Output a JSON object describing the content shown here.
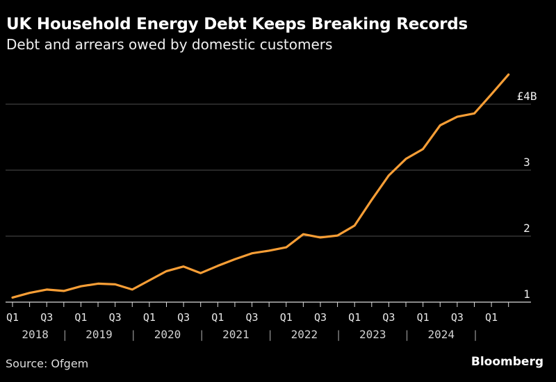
{
  "header": {
    "title": "UK Household Energy Debt Keeps Breaking Records",
    "subtitle": "Debt and arrears owed by domestic customers"
  },
  "footer": {
    "source": "Source: Ofgem",
    "brand": "Bloomberg"
  },
  "chart_data": {
    "type": "line",
    "title": "UK Household Energy Debt Keeps Breaking Records",
    "subtitle": "Debt and arrears owed by domestic customers",
    "source": "Source: Ofgem",
    "xlabel": "",
    "ylabel": "",
    "yunit": "£B",
    "x": [
      "Q1 2018",
      "Q2 2018",
      "Q3 2018",
      "Q4 2018",
      "Q1 2019",
      "Q2 2019",
      "Q3 2019",
      "Q4 2019",
      "Q1 2020",
      "Q2 2020",
      "Q3 2020",
      "Q4 2020",
      "Q1 2021",
      "Q2 2021",
      "Q3 2021",
      "Q4 2021",
      "Q1 2022",
      "Q2 2022",
      "Q3 2022",
      "Q4 2022",
      "Q1 2023",
      "Q2 2023",
      "Q3 2023",
      "Q4 2023",
      "Q1 2024",
      "Q2 2024",
      "Q3 2024",
      "Q4 2024",
      "Q1 2025",
      "Q2 2025"
    ],
    "values": [
      1.07,
      1.14,
      1.19,
      1.17,
      1.24,
      1.28,
      1.27,
      1.19,
      1.33,
      1.47,
      1.54,
      1.44,
      1.55,
      1.65,
      1.74,
      1.78,
      1.83,
      2.03,
      1.98,
      2.01,
      2.16,
      2.55,
      2.92,
      3.17,
      3.32,
      3.68,
      3.81,
      3.86,
      4.15,
      4.45
    ],
    "ylim": [
      1,
      4.6
    ],
    "yticks": [
      {
        "value": 4,
        "label": "£4B"
      },
      {
        "value": 3,
        "label": "3"
      },
      {
        "value": 2,
        "label": "2"
      },
      {
        "value": 1,
        "label": "1"
      }
    ],
    "quarter_label_q1": "Q1",
    "quarter_label_q3": "Q3",
    "years": [
      "2018",
      "2019",
      "2020",
      "2021",
      "2022",
      "2023",
      "2024"
    ],
    "year_separator": "|",
    "grid": "horizontal",
    "legend": "none",
    "colors": {
      "background": "#000000",
      "line": "#F79E36",
      "grid": "#4E4E4E",
      "axis": "#DCDCDC",
      "y_label": "#EFEFEF",
      "quarter_label": "#E9E9E9",
      "year_label": "#D2D2D2",
      "separator": "#909090",
      "title": "#FFFFFF",
      "subtitle": "#F0F0F0"
    }
  }
}
